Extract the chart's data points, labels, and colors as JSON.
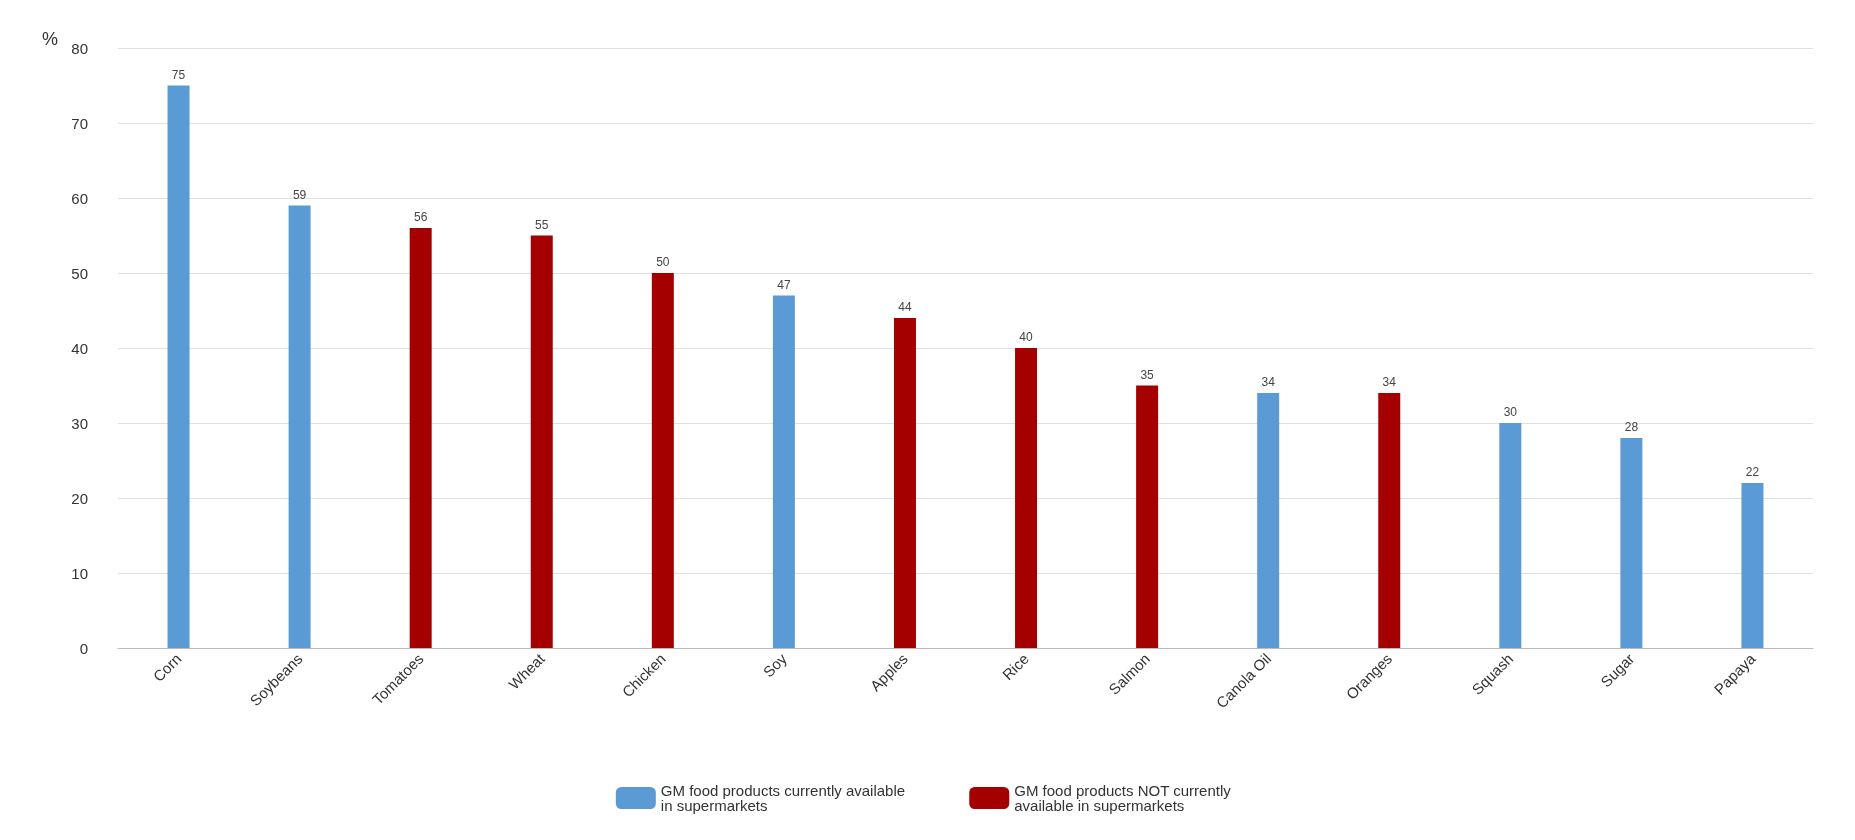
{
  "chart_data": {
    "type": "bar",
    "ylabel": "%",
    "categories": [
      "Corn",
      "Soybeans",
      "Tomatoes",
      "Wheat",
      "Chicken",
      "Soy",
      "Apples",
      "Rice",
      "Salmon",
      "Canola Oil",
      "Oranges",
      "Squash",
      "Sugar",
      "Papaya"
    ],
    "series": [
      {
        "name": "GM food products currently available in supermarkets",
        "color": "#5b9bd5",
        "values": [
          75,
          59,
          null,
          null,
          null,
          47,
          null,
          null,
          null,
          34,
          null,
          30,
          28,
          22
        ]
      },
      {
        "name": "GM food products NOT currently available in supermarkets",
        "color": "#a50000",
        "values": [
          null,
          null,
          56,
          55,
          50,
          null,
          44,
          40,
          35,
          null,
          34,
          null,
          null,
          null
        ]
      }
    ],
    "ylim": [
      0,
      80
    ],
    "yticks": [
      0,
      10,
      20,
      30,
      40,
      50,
      60,
      70,
      80
    ],
    "grid": "y",
    "legend": "bottom",
    "data_labels": true
  }
}
